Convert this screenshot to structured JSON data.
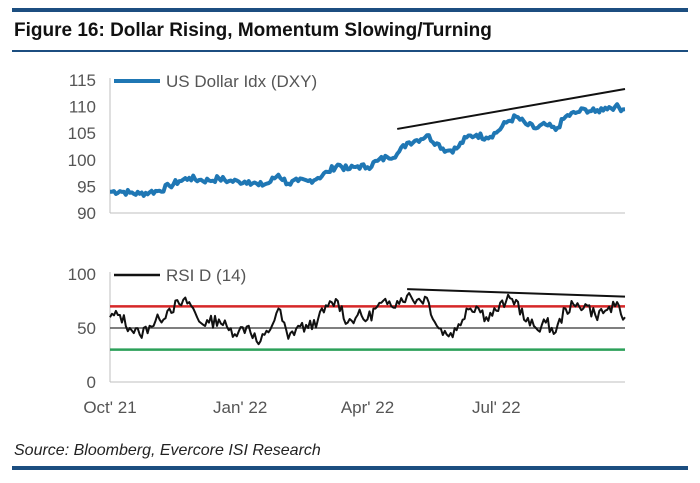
{
  "title": "Figure 16: Dollar Rising, Momentum Slowing/Turning",
  "source": "Source: Bloomberg, Evercore ISI Research",
  "colors": {
    "brand_bar": "#1c4e80",
    "dxy_line": "#1f77b4",
    "rsi_line": "#111111",
    "trend_line": "#111111",
    "overbought": "#d62728",
    "oversold": "#2ca05a",
    "midline": "#555555",
    "axis": "#bfbfbf"
  },
  "chart_data": [
    {
      "type": "line",
      "name": "dxy-panel",
      "ylim": [
        90,
        115
      ],
      "yticks": [
        90,
        95,
        100,
        105,
        110,
        115
      ],
      "legend": "top-left",
      "grid": false,
      "series": [
        {
          "name": "US Dollar Idx (DXY)",
          "points": [
            [
              "2021-10-01",
              94.0
            ],
            [
              "2021-10-08",
              94.1
            ],
            [
              "2021-10-15",
              93.8
            ],
            [
              "2021-10-22",
              93.6
            ],
            [
              "2021-10-29",
              93.9
            ],
            [
              "2021-11-05",
              94.2
            ],
            [
              "2021-11-12",
              95.1
            ],
            [
              "2021-11-19",
              96.0
            ],
            [
              "2021-11-26",
              96.6
            ],
            [
              "2021-12-03",
              96.2
            ],
            [
              "2021-12-10",
              96.1
            ],
            [
              "2021-12-17",
              96.5
            ],
            [
              "2021-12-24",
              96.0
            ],
            [
              "2021-12-31",
              95.9
            ],
            [
              "2022-01-07",
              96.0
            ],
            [
              "2022-01-14",
              95.2
            ],
            [
              "2022-01-21",
              95.6
            ],
            [
              "2022-01-28",
              97.2
            ],
            [
              "2022-02-04",
              95.5
            ],
            [
              "2022-02-11",
              96.0
            ],
            [
              "2022-02-18",
              96.0
            ],
            [
              "2022-02-25",
              96.6
            ],
            [
              "2022-03-04",
              97.7
            ],
            [
              "2022-03-11",
              99.1
            ],
            [
              "2022-03-18",
              98.2
            ],
            [
              "2022-03-25",
              98.8
            ],
            [
              "2022-04-01",
              98.6
            ],
            [
              "2022-04-08",
              99.8
            ],
            [
              "2022-04-15",
              100.5
            ],
            [
              "2022-04-22",
              101.1
            ],
            [
              "2022-04-29",
              103.2
            ],
            [
              "2022-05-06",
              103.7
            ],
            [
              "2022-05-13",
              104.6
            ],
            [
              "2022-05-20",
              103.1
            ],
            [
              "2022-05-27",
              101.7
            ],
            [
              "2022-06-03",
              102.1
            ],
            [
              "2022-06-10",
              104.2
            ],
            [
              "2022-06-17",
              104.7
            ],
            [
              "2022-06-24",
              104.2
            ],
            [
              "2022-07-01",
              105.1
            ],
            [
              "2022-07-08",
              107.0
            ],
            [
              "2022-07-15",
              108.1
            ],
            [
              "2022-07-22",
              106.7
            ],
            [
              "2022-07-29",
              105.9
            ],
            [
              "2022-08-05",
              106.6
            ],
            [
              "2022-08-12",
              105.6
            ],
            [
              "2022-08-19",
              108.1
            ],
            [
              "2022-08-26",
              108.8
            ],
            [
              "2022-09-02",
              109.5
            ],
            [
              "2022-09-09",
              109.0
            ],
            [
              "2022-09-16",
              109.8
            ],
            [
              "2022-09-23",
              110.0
            ],
            [
              "2022-09-30",
              109.5
            ]
          ]
        }
      ]
    },
    {
      "type": "line",
      "name": "rsi-panel",
      "ylim": [
        0,
        100
      ],
      "yticks": [
        0,
        50,
        100
      ],
      "reference_levels": [
        70,
        50,
        30
      ],
      "legend": "top-left",
      "grid": false,
      "xticks": [
        {
          "date": "2021-10-01",
          "label": "Oct' 21"
        },
        {
          "date": "2022-01-01",
          "label": "Jan' 22"
        },
        {
          "date": "2022-04-01",
          "label": "Apr' 22"
        },
        {
          "date": "2022-07-01",
          "label": "Jul' 22"
        }
      ],
      "series": [
        {
          "name": "RSI D (14)",
          "points": [
            [
              "2021-10-01",
              60
            ],
            [
              "2021-10-08",
              62
            ],
            [
              "2021-10-15",
              50
            ],
            [
              "2021-10-22",
              44
            ],
            [
              "2021-10-29",
              52
            ],
            [
              "2021-11-05",
              58
            ],
            [
              "2021-11-12",
              68
            ],
            [
              "2021-11-19",
              72
            ],
            [
              "2021-11-26",
              74
            ],
            [
              "2021-12-03",
              56
            ],
            [
              "2021-12-10",
              55
            ],
            [
              "2021-12-17",
              58
            ],
            [
              "2021-12-24",
              48
            ],
            [
              "2021-12-31",
              47
            ],
            [
              "2022-01-07",
              52
            ],
            [
              "2022-01-14",
              35
            ],
            [
              "2022-01-21",
              46
            ],
            [
              "2022-01-28",
              68
            ],
            [
              "2022-02-04",
              40
            ],
            [
              "2022-02-11",
              52
            ],
            [
              "2022-02-18",
              50
            ],
            [
              "2022-02-25",
              58
            ],
            [
              "2022-03-04",
              70
            ],
            [
              "2022-03-11",
              75
            ],
            [
              "2022-03-18",
              55
            ],
            [
              "2022-03-25",
              62
            ],
            [
              "2022-04-01",
              58
            ],
            [
              "2022-04-08",
              70
            ],
            [
              "2022-04-15",
              72
            ],
            [
              "2022-04-22",
              75
            ],
            [
              "2022-04-29",
              80
            ],
            [
              "2022-05-06",
              76
            ],
            [
              "2022-05-13",
              78
            ],
            [
              "2022-05-20",
              52
            ],
            [
              "2022-05-27",
              44
            ],
            [
              "2022-06-03",
              48
            ],
            [
              "2022-06-10",
              68
            ],
            [
              "2022-06-17",
              70
            ],
            [
              "2022-06-24",
              60
            ],
            [
              "2022-07-01",
              66
            ],
            [
              "2022-07-08",
              75
            ],
            [
              "2022-07-15",
              76
            ],
            [
              "2022-07-22",
              56
            ],
            [
              "2022-07-29",
              50
            ],
            [
              "2022-08-05",
              55
            ],
            [
              "2022-08-12",
              46
            ],
            [
              "2022-08-19",
              68
            ],
            [
              "2022-08-26",
              70
            ],
            [
              "2022-09-02",
              72
            ],
            [
              "2022-09-09",
              62
            ],
            [
              "2022-09-16",
              66
            ],
            [
              "2022-09-23",
              70
            ],
            [
              "2022-09-30",
              60
            ]
          ]
        }
      ]
    }
  ],
  "annotations": [
    {
      "panel": 0,
      "from": [
        "2022-04-22",
        105.8
      ],
      "to": [
        "2022-09-30",
        113.3
      ]
    },
    {
      "panel": 1,
      "from": [
        "2022-04-29",
        86
      ],
      "to": [
        "2022-09-30",
        79
      ]
    }
  ]
}
